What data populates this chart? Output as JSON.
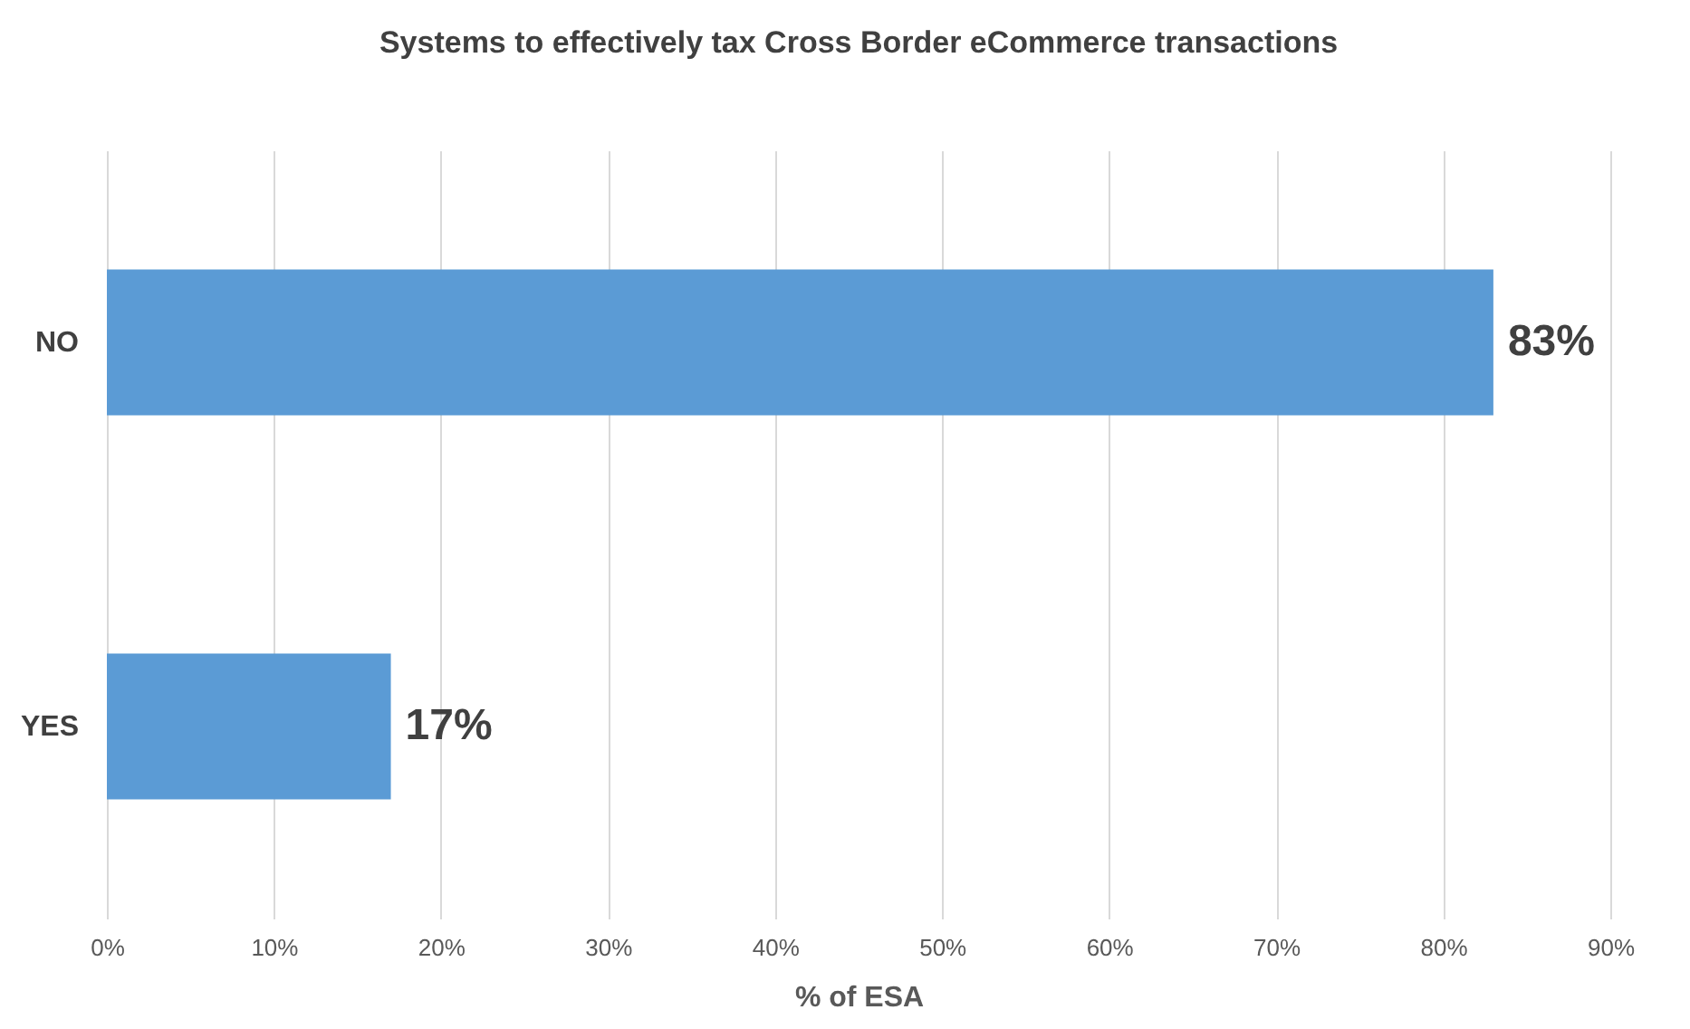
{
  "chart_data": {
    "type": "bar",
    "orientation": "horizontal",
    "title": "Systems to effectively tax Cross Border eCommerce transactions",
    "xlabel": "% of ESA",
    "categories": [
      "NO",
      "YES"
    ],
    "values": [
      83,
      17
    ],
    "value_labels": [
      "83%",
      "17%"
    ],
    "color": "#5b9bd5",
    "xlim": [
      0,
      90
    ],
    "xticks": [
      {
        "value": 0,
        "label": "0%"
      },
      {
        "value": 10,
        "label": "10%"
      },
      {
        "value": 20,
        "label": "20%"
      },
      {
        "value": 30,
        "label": "30%"
      },
      {
        "value": 40,
        "label": "40%"
      },
      {
        "value": 50,
        "label": "50%"
      },
      {
        "value": 60,
        "label": "60%"
      },
      {
        "value": 70,
        "label": "70%"
      },
      {
        "value": 80,
        "label": "80%"
      },
      {
        "value": 90,
        "label": "90%"
      }
    ],
    "grid": "x"
  }
}
